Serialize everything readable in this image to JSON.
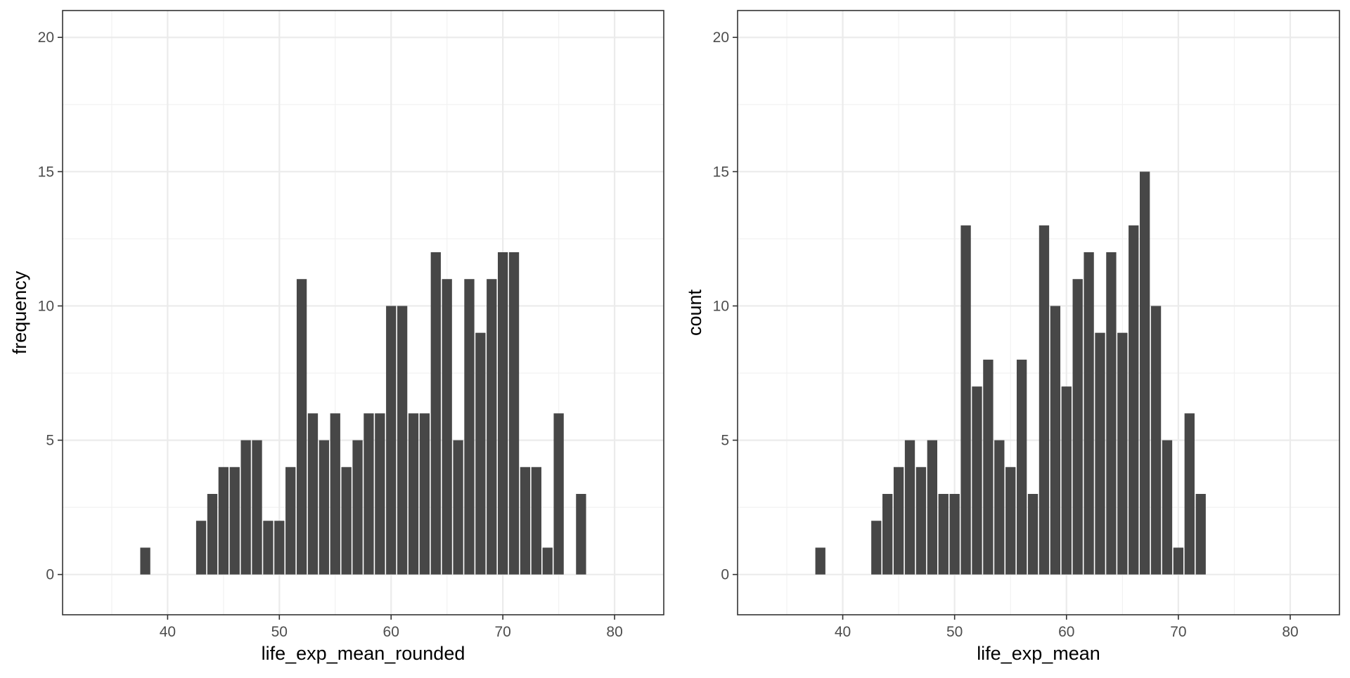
{
  "chart_data": [
    {
      "type": "bar",
      "title": "",
      "xlabel": "life_exp_mean_rounded",
      "ylabel": "frequency",
      "xlim": [
        30.6,
        84.4
      ],
      "ylim": [
        -1.5,
        21
      ],
      "xticks": [
        40,
        50,
        60,
        70,
        80
      ],
      "yticks": [
        0,
        5,
        10,
        15,
        20
      ],
      "x": [
        38,
        43,
        44,
        45,
        46,
        47,
        48,
        49,
        50,
        51,
        52,
        53,
        54,
        55,
        56,
        57,
        58,
        59,
        60,
        61,
        62,
        63,
        64,
        65,
        66,
        67,
        68,
        69,
        70,
        71,
        72,
        73,
        74,
        75,
        77
      ],
      "values": [
        1,
        2,
        3,
        4,
        4,
        5,
        5,
        2,
        2,
        4,
        11,
        6,
        5,
        6,
        4,
        5,
        6,
        6,
        10,
        10,
        6,
        6,
        12,
        11,
        5,
        11,
        9,
        11,
        12,
        12,
        4,
        4,
        1,
        6,
        3
      ],
      "bar_color": "#474747"
    },
    {
      "type": "bar",
      "title": "",
      "xlabel": "life_exp_mean",
      "ylabel": "count",
      "xlim": [
        30.6,
        84.4
      ],
      "ylim": [
        -1.5,
        21
      ],
      "xticks": [
        40,
        50,
        60,
        70,
        80
      ],
      "yticks": [
        0,
        5,
        10,
        15,
        20
      ],
      "x": [
        38,
        43,
        44,
        45,
        46,
        47,
        48,
        49,
        50,
        51,
        52,
        53,
        54,
        55,
        56,
        57,
        58,
        59,
        60,
        61,
        62,
        63,
        64,
        65,
        66,
        67,
        68,
        69,
        70,
        71,
        72,
        73,
        74,
        75,
        77
      ],
      "values": [
        1,
        2,
        3,
        4,
        5,
        4,
        5,
        3,
        3,
        13,
        7,
        8,
        5,
        4,
        8,
        3,
        13,
        10,
        7,
        11,
        12,
        9,
        12,
        9,
        13,
        15,
        10,
        5,
        1,
        6,
        3,
        0,
        0,
        0,
        0
      ],
      "bar_color": "#474747"
    }
  ]
}
